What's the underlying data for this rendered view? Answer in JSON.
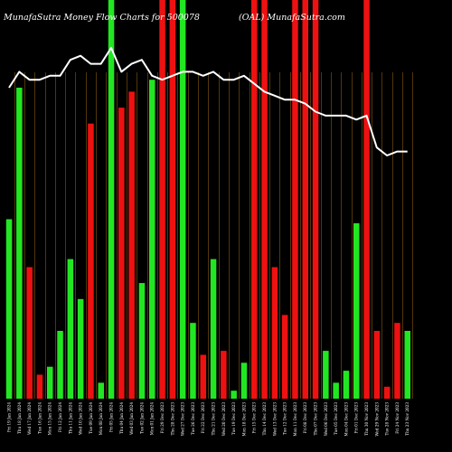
{
  "chart_data": {
    "type": "bar",
    "title": "MunafaSutra  Money Flow  Charts for 500078",
    "subtitle": "(OAL)  MunafaSutra.com",
    "grid": true,
    "colors": {
      "up": "#22e622",
      "down": "#ee1111",
      "line": "#ffffff",
      "grid": "#8a5a10"
    },
    "ylim": [
      0,
      100
    ],
    "bars": [
      {
        "label": "Fri 19 Jan 2024 ",
        "value": 45,
        "dir": "up"
      },
      {
        "label": "Thu 18 Jan 2024 ",
        "value": 78,
        "dir": "up"
      },
      {
        "label": "Wed 17 Jan 2024 ",
        "value": 33,
        "dir": "down"
      },
      {
        "label": "Tue 16 Jan 2024 ",
        "value": 6,
        "dir": "down"
      },
      {
        "label": "Mon 15 Jan 2024 ",
        "value": 8,
        "dir": "up"
      },
      {
        "label": "Fri 12 Jan 2024 ",
        "value": 17,
        "dir": "up"
      },
      {
        "label": "Thu 11 Jan 2024 ",
        "value": 35,
        "dir": "up"
      },
      {
        "label": "Wed 10 Jan 2024 ",
        "value": 25,
        "dir": "up"
      },
      {
        "label": "Tue 09 Jan 2024 ",
        "value": 69,
        "dir": "down"
      },
      {
        "label": "Mon 08 Jan 2024 ",
        "value": 4,
        "dir": "up"
      },
      {
        "label": "Fri 05 Jan 2024 ",
        "value": 100,
        "dir": "up"
      },
      {
        "label": "Thu 04 Jan 2024 ",
        "value": 73,
        "dir": "down"
      },
      {
        "label": "Wed 03 Jan 2024 ",
        "value": 77,
        "dir": "down"
      },
      {
        "label": "Tue 02 Jan 2024 ",
        "value": 29,
        "dir": "up"
      },
      {
        "label": "Mon 01 Jan 2024 ",
        "value": 80,
        "dir": "up"
      },
      {
        "label": "Fri 29 Dec 2023 ",
        "value": 100,
        "dir": "down"
      },
      {
        "label": "Thu 28 Dec 2023 ",
        "value": 100,
        "dir": "down"
      },
      {
        "label": "Wed 27 Dec 2023 ",
        "value": 100,
        "dir": "up"
      },
      {
        "label": "Tue 26 Dec 2023 ",
        "value": 19,
        "dir": "up"
      },
      {
        "label": "Fri 22 Dec 2023 ",
        "value": 11,
        "dir": "down"
      },
      {
        "label": "Thu 21 Dec 2023 ",
        "value": 35,
        "dir": "up"
      },
      {
        "label": "Wed 20 Dec 2023 ",
        "value": 12,
        "dir": "down"
      },
      {
        "label": "Tue 19 Dec 2023 ",
        "value": 2,
        "dir": "up"
      },
      {
        "label": "Mon 18 Dec 2023 ",
        "value": 9,
        "dir": "up"
      },
      {
        "label": "Fri 15 Dec 2023 ",
        "value": 100,
        "dir": "down"
      },
      {
        "label": "Thu 14 Dec 2023 ",
        "value": 100,
        "dir": "down"
      },
      {
        "label": "Wed 13 Dec 2023 ",
        "value": 33,
        "dir": "down"
      },
      {
        "label": "Tue 12 Dec 2023 ",
        "value": 21,
        "dir": "down"
      },
      {
        "label": "Mon 11 Dec 2023 ",
        "value": 100,
        "dir": "down"
      },
      {
        "label": "Fri 08 Dec 2023 ",
        "value": 100,
        "dir": "down"
      },
      {
        "label": "Thu 07 Dec 2023 ",
        "value": 100,
        "dir": "down"
      },
      {
        "label": "Wed 06 Dec 2023 ",
        "value": 12,
        "dir": "up"
      },
      {
        "label": "Tue 05 Dec 2023 ",
        "value": 4,
        "dir": "up"
      },
      {
        "label": "Mon 04 Dec 2023 ",
        "value": 7,
        "dir": "up"
      },
      {
        "label": "Fri 01 Dec 2023 ",
        "value": 44,
        "dir": "up"
      },
      {
        "label": "Thu 30 Nov 2023 ",
        "value": 100,
        "dir": "down"
      },
      {
        "label": "Wed 29 Nov 2023 ",
        "value": 17,
        "dir": "down"
      },
      {
        "label": "Tue 28 Nov 2023 ",
        "value": 3,
        "dir": "down"
      },
      {
        "label": "Fri 24 Nov 2023 ",
        "value": 19,
        "dir": "down"
      },
      {
        "label": "Thu 23 Nov 2023 ",
        "value": 17,
        "dir": "up"
      }
    ],
    "price_line": [
      78,
      82,
      80,
      80,
      81,
      81,
      85,
      86,
      84,
      84,
      88,
      82,
      84,
      85,
      81,
      80,
      81,
      82,
      82,
      81,
      82,
      80,
      80,
      81,
      79,
      77,
      76,
      75,
      75,
      74,
      72,
      71,
      71,
      71,
      70,
      71,
      63,
      61,
      62,
      62
    ]
  }
}
